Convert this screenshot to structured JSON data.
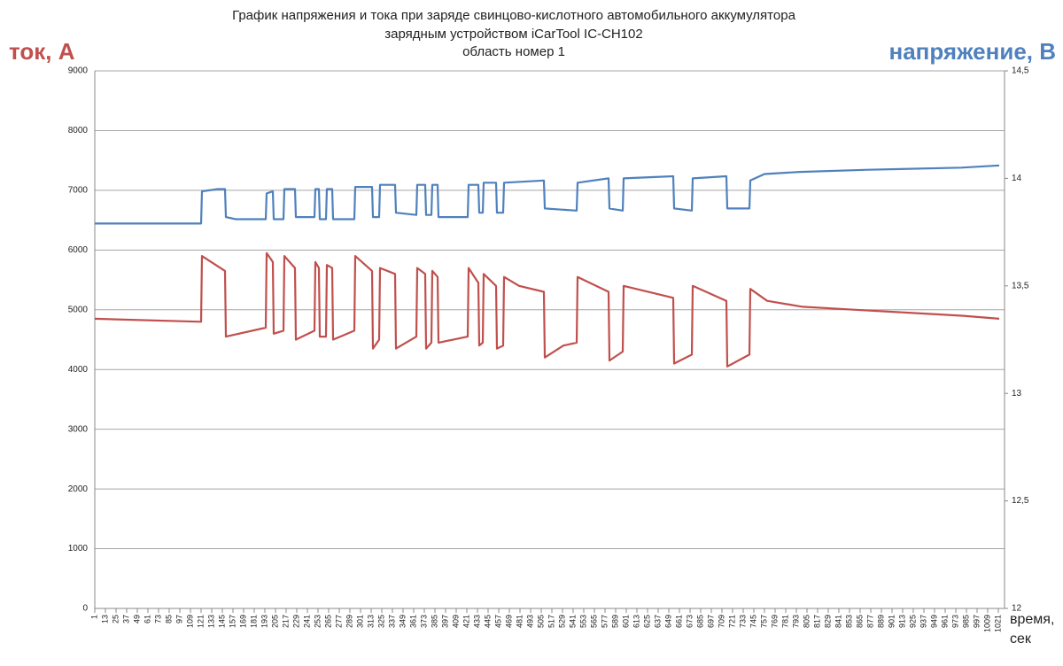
{
  "chart_data": {
    "type": "line",
    "title": [
      "График напряжения и тока при заряде свинцово-кислотного автомобильного аккумулятора",
      "зарядным устройством iCarTool IC-CH102",
      "область номер 1"
    ],
    "y_label": "ток, А",
    "y2_label": "напряжение, В",
    "x_label": [
      "время,",
      "сек"
    ],
    "xlim": [
      1,
      1028
    ],
    "xticks": [
      1,
      13,
      25,
      37,
      49,
      61,
      73,
      85,
      97,
      109,
      121,
      133,
      145,
      157,
      169,
      181,
      193,
      205,
      217,
      229,
      241,
      253,
      265,
      277,
      289,
      301,
      313,
      325,
      337,
      349,
      361,
      373,
      385,
      397,
      409,
      421,
      433,
      445,
      457,
      469,
      481,
      493,
      505,
      517,
      529,
      541,
      553,
      565,
      577,
      589,
      601,
      613,
      625,
      637,
      649,
      661,
      673,
      685,
      697,
      709,
      721,
      733,
      745,
      757,
      769,
      781,
      793,
      805,
      817,
      829,
      841,
      853,
      865,
      877,
      889,
      901,
      913,
      925,
      937,
      949,
      961,
      973,
      985,
      997,
      1009,
      1021
    ],
    "ylim": [
      0,
      9000
    ],
    "yticks": [
      0,
      1000,
      2000,
      3000,
      4000,
      5000,
      6000,
      7000,
      8000,
      9000
    ],
    "y2lim": [
      12,
      14.5
    ],
    "y2ticks": [
      12,
      {
        "value": 12.5,
        "label": "12,5"
      },
      13,
      {
        "value": 13.5,
        "label": "13,5"
      },
      14,
      {
        "value": 14.5,
        "label": "14,5"
      }
    ],
    "grid": true,
    "series": [
      {
        "color": "#c0504d",
        "axis": "y",
        "x": [
          1,
          121,
          122,
          148,
          149,
          194,
          195,
          202,
          203,
          214,
          215,
          227,
          228,
          249,
          250,
          254,
          255,
          262,
          263,
          269,
          270,
          294,
          295,
          314,
          315,
          322,
          323,
          340,
          341,
          364,
          365,
          374,
          375,
          381,
          382,
          388,
          389,
          422,
          423,
          434,
          435,
          439,
          440,
          454,
          455,
          462,
          463,
          480,
          508,
          509,
          530,
          545,
          546,
          581,
          582,
          597,
          598,
          654,
          655,
          675,
          676,
          714,
          715,
          740,
          741,
          760,
          800,
          860,
          920,
          980,
          1022
        ],
        "values": [
          4850,
          4800,
          5900,
          5650,
          4550,
          4700,
          5950,
          5800,
          4600,
          4650,
          5900,
          5700,
          4500,
          4650,
          5800,
          5700,
          4550,
          4550,
          5750,
          5700,
          4500,
          4650,
          5900,
          5650,
          4350,
          4500,
          5700,
          5600,
          4350,
          4550,
          5700,
          5600,
          4350,
          4450,
          5650,
          5550,
          4450,
          4550,
          5700,
          5450,
          4400,
          4450,
          5600,
          5400,
          4350,
          4400,
          5550,
          5400,
          5300,
          4200,
          4400,
          4450,
          5550,
          5300,
          4150,
          4300,
          5400,
          5200,
          4100,
          4250,
          5400,
          5150,
          4050,
          4250,
          5350,
          5150,
          5050,
          5000,
          4950,
          4900,
          4850
        ]
      },
      {
        "color": "#4f81bd",
        "axis": "y2",
        "x": [
          1,
          121,
          122,
          140,
          148,
          149,
          160,
          194,
          195,
          202,
          203,
          214,
          215,
          227,
          228,
          249,
          250,
          254,
          255,
          262,
          263,
          269,
          270,
          294,
          295,
          314,
          315,
          322,
          323,
          340,
          341,
          364,
          365,
          374,
          375,
          381,
          382,
          388,
          389,
          422,
          423,
          434,
          435,
          439,
          440,
          454,
          455,
          462,
          463,
          508,
          509,
          545,
          546,
          581,
          582,
          597,
          598,
          654,
          655,
          675,
          676,
          714,
          715,
          740,
          741,
          757,
          797,
          874,
          979,
          1022
        ],
        "values": [
          13.79,
          13.79,
          13.94,
          13.95,
          13.95,
          13.82,
          13.81,
          13.81,
          13.93,
          13.94,
          13.81,
          13.81,
          13.95,
          13.95,
          13.82,
          13.82,
          13.95,
          13.95,
          13.81,
          13.81,
          13.95,
          13.95,
          13.81,
          13.81,
          13.96,
          13.96,
          13.82,
          13.82,
          13.97,
          13.97,
          13.84,
          13.83,
          13.97,
          13.97,
          13.83,
          13.83,
          13.97,
          13.97,
          13.82,
          13.82,
          13.97,
          13.97,
          13.84,
          13.84,
          13.98,
          13.98,
          13.84,
          13.84,
          13.98,
          13.99,
          13.86,
          13.85,
          13.98,
          14.0,
          13.86,
          13.85,
          14.0,
          14.01,
          13.86,
          13.85,
          14.0,
          14.01,
          13.86,
          13.86,
          13.99,
          14.02,
          14.03,
          14.04,
          14.05,
          14.06
        ]
      }
    ]
  }
}
